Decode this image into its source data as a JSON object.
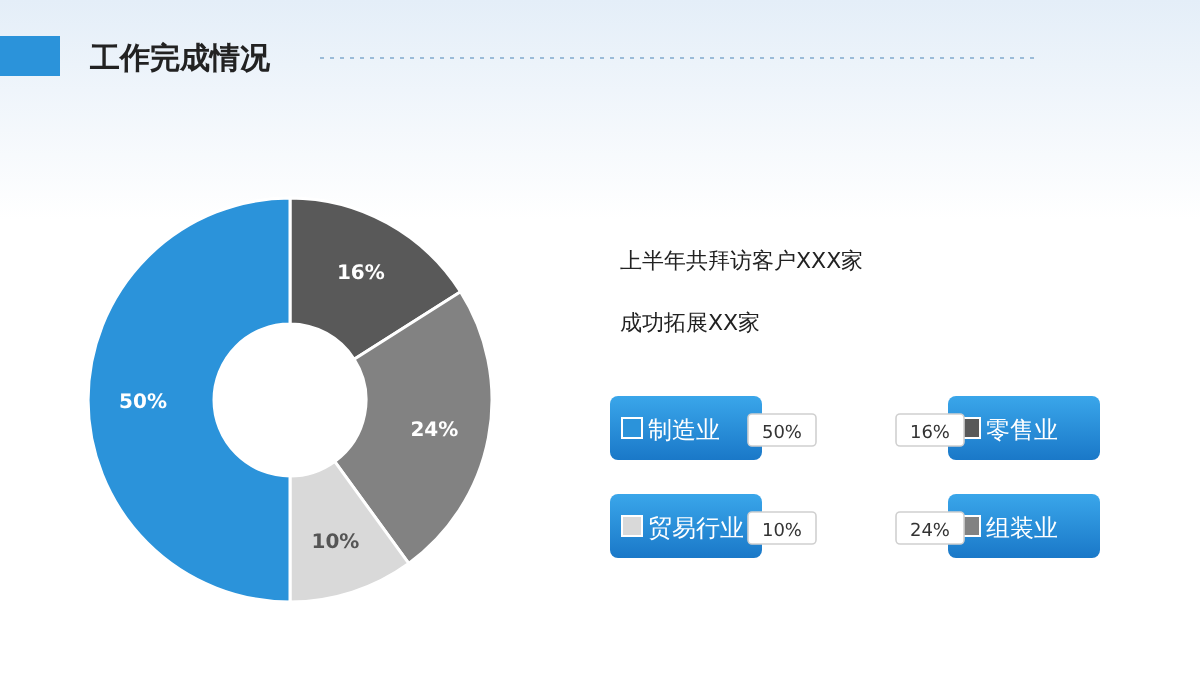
{
  "chart_data": {
    "type": "donut",
    "title": "工作完成情况",
    "categories": [
      "零售业",
      "组装业",
      "贸易行业",
      "制造业"
    ],
    "values": [
      16,
      24,
      10,
      50
    ],
    "value_labels": [
      "16%",
      "24%",
      "10%",
      "50%"
    ],
    "colors": [
      "#595959",
      "#828282",
      "#d9d9d9",
      "#2b93da"
    ],
    "legend": "right",
    "annotations": [
      "上半年共拜访客户XXX家",
      "成功拓展XX家"
    ]
  }
}
